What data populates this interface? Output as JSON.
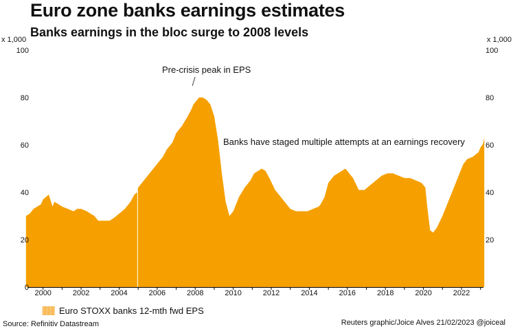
{
  "header": {
    "title": "Euro zone banks earnings estimates",
    "subtitle": "Banks earnings in the bloc surge to 2008 levels"
  },
  "footer": {
    "source": "Source: Refinitiv Datastream",
    "credit": "Reuters graphic/Joice Alves 21/02/2023 @joiceal"
  },
  "colors": {
    "area": "#f5a000",
    "axis": "#000000"
  },
  "chart_data": {
    "type": "area",
    "title": "Euro zone banks earnings estimates",
    "subtitle": "Banks earnings in the bloc surge to 2008 levels",
    "unit_label_left": "x 1,000",
    "unit_label_right": "x 1,000",
    "xlim": [
      1999.0,
      2023.3
    ],
    "ylim": [
      0,
      100
    ],
    "yticks": [
      0,
      20,
      40,
      60,
      80,
      100
    ],
    "ytick_labels_left": [
      "0",
      "20",
      "40",
      "60",
      "80",
      "100"
    ],
    "ytick_labels_right": [
      "20",
      "40",
      "60",
      "80",
      "100"
    ],
    "xticks": [
      2000,
      2002,
      2004,
      2006,
      2008,
      2010,
      2012,
      2014,
      2016,
      2018,
      2020,
      2022
    ],
    "xtick_labels": [
      "2000",
      "2002",
      "2004",
      "2006",
      "2008",
      "2010",
      "2012",
      "2014",
      "2016",
      "2018",
      "2020",
      "2022"
    ],
    "legend": "Euro STOXX banks 12-mth fwd EPS",
    "annotations": [
      {
        "text": "Pre-crisis peak in EPS",
        "x": 2007.85,
        "y": 85.5
      },
      {
        "text": "Banks have staged multiple attempts at an earnings recovery",
        "x": 2016.7,
        "y": 60.5
      }
    ],
    "series": [
      {
        "name": "Euro STOXX banks 12-mth fwd EPS",
        "x": [
          1999.1,
          1999.3,
          1999.5,
          1999.7,
          1999.9,
          2000.0,
          2000.3,
          2000.5,
          2000.6,
          2000.8,
          2001.0,
          2001.3,
          2001.6,
          2001.8,
          2002.0,
          2002.3,
          2002.5,
          2002.7,
          2002.9,
          2003.1,
          2003.3,
          2003.5,
          2003.7,
          2004.0,
          2004.3,
          2004.6,
          2004.8,
          2004.95,
          2005.0,
          2005.2,
          2005.5,
          2005.8,
          2006.0,
          2006.3,
          2006.5,
          2006.8,
          2007.0,
          2007.3,
          2007.6,
          2007.8,
          2007.9,
          2008.0,
          2008.2,
          2008.4,
          2008.6,
          2008.8,
          2009.0,
          2009.2,
          2009.4,
          2009.6,
          2009.8,
          2010.0,
          2010.3,
          2010.6,
          2010.9,
          2011.1,
          2011.3,
          2011.5,
          2011.7,
          2011.9,
          2012.2,
          2012.5,
          2012.8,
          2013.0,
          2013.3,
          2013.6,
          2013.9,
          2014.2,
          2014.5,
          2014.6,
          2014.8,
          2015.0,
          2015.3,
          2015.5,
          2015.7,
          2015.9,
          2016.0,
          2016.3,
          2016.6,
          2016.9,
          2017.2,
          2017.5,
          2017.8,
          2018.1,
          2018.4,
          2018.7,
          2019.0,
          2019.3,
          2019.6,
          2019.9,
          2020.0,
          2020.1,
          2020.2,
          2020.35,
          2020.5,
          2020.7,
          2021.0,
          2021.3,
          2021.6,
          2021.9,
          2022.1,
          2022.3,
          2022.6,
          2022.9,
          2023.0,
          2023.1,
          2023.15,
          2023.2
        ],
        "values": [
          30,
          31,
          33,
          34,
          35,
          37,
          39,
          34,
          36,
          35,
          34,
          33,
          32,
          33,
          33,
          32,
          31,
          30,
          28,
          28,
          28,
          28,
          29,
          31,
          33,
          36,
          39,
          40,
          42,
          44,
          47,
          50,
          52,
          55,
          58,
          61,
          65,
          68,
          72,
          75,
          77,
          78,
          80,
          80,
          79,
          77,
          72,
          62,
          48,
          36,
          30,
          32,
          38,
          42,
          45,
          48,
          49,
          50,
          49,
          46,
          41,
          38,
          35,
          33,
          32,
          32,
          32,
          33,
          34,
          35,
          38,
          44,
          47,
          48,
          49,
          50,
          49,
          46,
          41,
          41,
          43,
          45,
          47,
          48,
          48,
          47,
          46,
          46,
          45,
          44,
          43,
          42,
          34,
          24,
          23,
          25,
          30,
          36,
          42,
          48,
          52,
          54,
          55,
          57,
          59,
          60,
          61,
          63
        ]
      }
    ]
  }
}
